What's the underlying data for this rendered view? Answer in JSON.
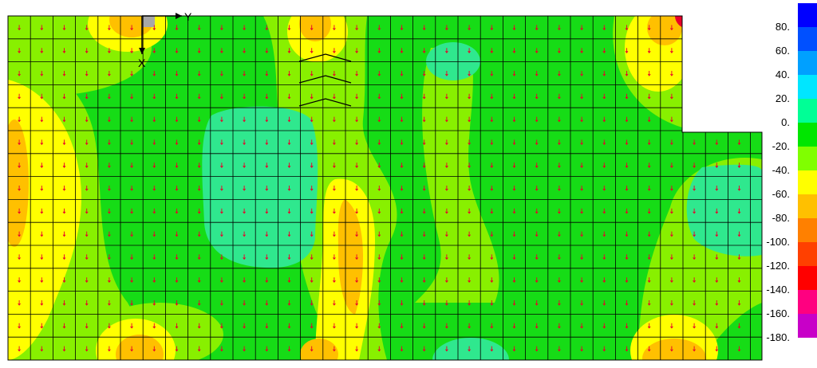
{
  "chart_data": {
    "type": "heatmap",
    "title": "",
    "subtitle": "",
    "axes": {
      "x_axis_label": "X",
      "y_axis_label": "Y"
    },
    "grid": true,
    "legend_position": "right",
    "legend": {
      "labels": [
        "80.",
        "60.",
        "40.",
        "20.",
        "0.",
        "-20.",
        "-40.",
        "-60.",
        "-80.",
        "-100.",
        "-120.",
        "-140.",
        "-160.",
        "-180."
      ],
      "colors": [
        "#0000ff",
        "#0050ff",
        "#00a0ff",
        "#00e6ff",
        "#00ff96",
        "#00e600",
        "#80ff00",
        "#ffff00",
        "#ffc000",
        "#ff8000",
        "#ff4000",
        "#ff0000",
        "#ff0080",
        "#c800c8"
      ],
      "range": [
        -190,
        90
      ]
    },
    "contour_colors": {
      "cold": "#2fe88e",
      "mid": "#16dc16",
      "lime": "#88f000",
      "yellow": "#ffff00",
      "orange": "#ffc000",
      "grey": "#a8a8a8",
      "red": "#e8002a"
    }
  }
}
